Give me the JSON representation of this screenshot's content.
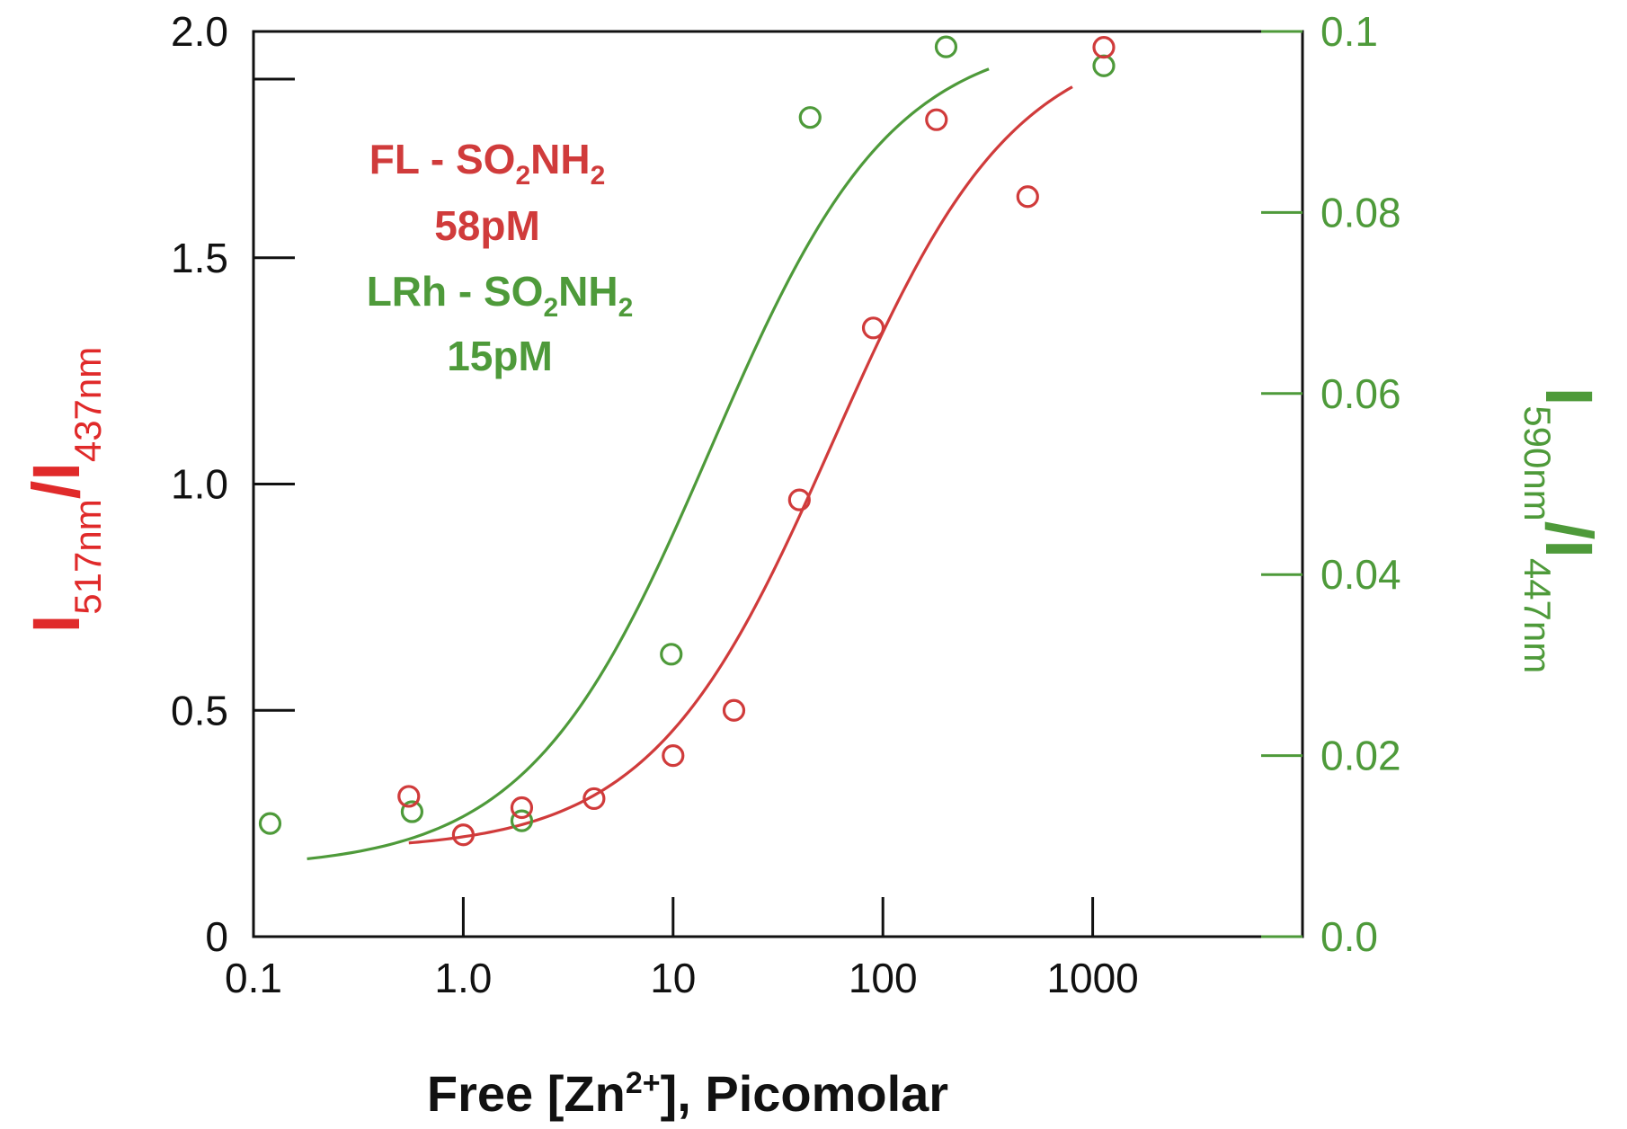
{
  "chart_data": {
    "type": "scatter",
    "x_scale": "log",
    "xlim": [
      0.1,
      10000
    ],
    "xlabel": {
      "prefix": "Free [Zn",
      "sup": "2+",
      "suffix": "], Picomolar"
    },
    "x_ticks": [
      {
        "value": 0.1,
        "label": "0.1"
      },
      {
        "value": 1,
        "label": "1.0"
      },
      {
        "value": 10,
        "label": "10"
      },
      {
        "value": 100,
        "label": "100"
      },
      {
        "value": 1000,
        "label": "1000"
      }
    ],
    "y_left": {
      "ylim": [
        0,
        2.0
      ],
      "ticks": [
        {
          "value": 0,
          "label": "0"
        },
        {
          "value": 0.5,
          "label": "0.5"
        },
        {
          "value": 1.0,
          "label": "1.0"
        },
        {
          "value": 1.5,
          "label": "1.5"
        },
        {
          "value": 2.0,
          "label": "2.0"
        }
      ],
      "label": {
        "main1": "I",
        "sub1": "517nm",
        "slash": "/",
        "main2": "I",
        "sub2": "437nm"
      },
      "color": "#e02a2a"
    },
    "y_right": {
      "ylim": [
        0,
        0.1
      ],
      "ticks": [
        {
          "value": 0.0,
          "label": "0.0"
        },
        {
          "value": 0.02,
          "label": "0.02"
        },
        {
          "value": 0.04,
          "label": "0.04"
        },
        {
          "value": 0.06,
          "label": "0.06"
        },
        {
          "value": 0.08,
          "label": "0.08"
        },
        {
          "value": 0.1,
          "label": "0.1"
        }
      ],
      "label": {
        "main1": "I",
        "sub1": "590nm",
        "slash": "/",
        "main2": "I",
        "sub2": "447nm"
      },
      "color": "#4e9a3a"
    },
    "series": [
      {
        "name": "FL - SO2NH2",
        "axis": "left",
        "color": "#d03b3b",
        "kd_label": "58pM",
        "points": [
          {
            "x": 0.55,
            "y": 0.31
          },
          {
            "x": 1.0,
            "y": 0.225
          },
          {
            "x": 1.9,
            "y": 0.285
          },
          {
            "x": 4.2,
            "y": 0.305
          },
          {
            "x": 10,
            "y": 0.4
          },
          {
            "x": 19.5,
            "y": 0.5
          },
          {
            "x": 40,
            "y": 0.965
          },
          {
            "x": 90,
            "y": 1.345
          },
          {
            "x": 180,
            "y": 1.805
          },
          {
            "x": 490,
            "y": 1.635
          },
          {
            "x": 1130,
            "y": 1.965
          }
        ],
        "fit": {
          "Kd": 58,
          "bottom": 0.19,
          "top": 2.0,
          "x_range": [
            0.55,
            800
          ]
        }
      },
      {
        "name": "LRh - SO2NH2",
        "axis": "right",
        "color": "#4e9a3a",
        "kd_label": "15pM",
        "points": [
          {
            "x": 0.12,
            "y": 0.0125
          },
          {
            "x": 0.57,
            "y": 0.0138
          },
          {
            "x": 1.9,
            "y": 0.0128
          },
          {
            "x": 9.8,
            "y": 0.0312
          },
          {
            "x": 45,
            "y": 0.0905
          },
          {
            "x": 200,
            "y": 0.0983
          },
          {
            "x": 1130,
            "y": 0.0962
          }
        ],
        "fit": {
          "Kd": 15,
          "bottom": 0.0075,
          "top": 0.1,
          "x_range": [
            0.18,
            320
          ]
        }
      }
    ],
    "annotations": [
      {
        "key": "fl_name",
        "prefix": "FL - SO",
        "sub1": "2",
        "mid": "NH",
        "sub2": "2",
        "color": "#d03b3b"
      },
      {
        "key": "fl_kd",
        "text": "58pM",
        "color": "#d03b3b"
      },
      {
        "key": "lrh_name",
        "prefix": "LRh - SO",
        "sub1": "2",
        "mid": "NH",
        "sub2": "2",
        "color": "#4e9a3a"
      },
      {
        "key": "lrh_kd",
        "text": "15pM",
        "color": "#4e9a3a"
      }
    ]
  }
}
